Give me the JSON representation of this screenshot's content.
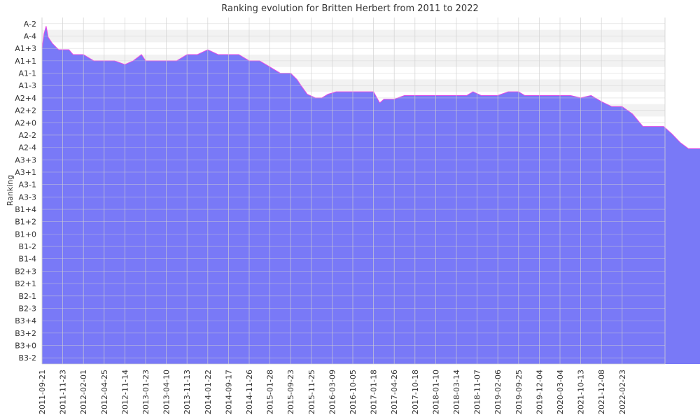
{
  "chart_data": {
    "type": "area",
    "title": "Ranking evolution for Britten Herbert from 2011 to 2022",
    "xlabel": "",
    "ylabel": "Ranking",
    "y_ticks": [
      "A-2",
      "A-4",
      "A1+3",
      "A1+1",
      "A1-1",
      "A1-3",
      "A2+4",
      "A2+2",
      "A2+0",
      "A2-2",
      "A2-4",
      "A3+3",
      "A3+1",
      "A3-1",
      "A3-3",
      "B1+4",
      "B1+2",
      "B1+0",
      "B1-2",
      "B1-4",
      "B2+3",
      "B2+1",
      "B2-1",
      "B2-3",
      "B3+4",
      "B3+2",
      "B3+0",
      "B3-2"
    ],
    "x_ticks": [
      "2011-09-21",
      "2011-11-23",
      "2012-02-01",
      "2012-04-25",
      "2012-11-14",
      "2013-01-23",
      "2013-04-10",
      "2013-11-13",
      "2014-01-22",
      "2014-09-17",
      "2014-11-26",
      "2015-01-28",
      "2015-09-23",
      "2015-11-25",
      "2016-03-09",
      "2016-10-05",
      "2017-01-18",
      "2017-04-26",
      "2017-10-18",
      "2018-01-10",
      "2018-03-14",
      "2018-11-07",
      "2019-02-06",
      "2019-09-25",
      "2019-12-04",
      "2020-03-04",
      "2021-10-13",
      "2021-12-08",
      "2022-02-23"
    ],
    "grid": true,
    "colors": {
      "fill": "#7272f7",
      "line": "#e64ce6",
      "band": "#f2f2f2",
      "grid": "#d0d0d0"
    },
    "series": [
      {
        "values": [
          [
            0.0,
            2.5
          ],
          [
            0.1,
            1.3
          ],
          [
            0.2,
            0.7
          ],
          [
            0.3,
            1.6
          ],
          [
            0.5,
            2.1
          ],
          [
            0.8,
            2.6
          ],
          [
            1.3,
            2.6
          ],
          [
            1.5,
            3.0
          ],
          [
            2.0,
            3.0
          ],
          [
            2.5,
            3.5
          ],
          [
            3.5,
            3.5
          ],
          [
            4.0,
            3.8
          ],
          [
            4.4,
            3.5
          ],
          [
            4.8,
            3.0
          ],
          [
            5.0,
            3.5
          ],
          [
            6.0,
            3.5
          ],
          [
            6.5,
            3.5
          ],
          [
            7.0,
            3.0
          ],
          [
            7.5,
            3.0
          ],
          [
            8.0,
            2.6
          ],
          [
            8.5,
            3.0
          ],
          [
            9.0,
            3.0
          ],
          [
            9.5,
            3.0
          ],
          [
            10.0,
            3.5
          ],
          [
            10.5,
            3.5
          ],
          [
            11.0,
            4.0
          ],
          [
            11.5,
            4.5
          ],
          [
            12.0,
            4.5
          ],
          [
            12.3,
            5.0
          ],
          [
            12.5,
            5.5
          ],
          [
            12.8,
            6.2
          ],
          [
            13.2,
            6.5
          ],
          [
            13.5,
            6.5
          ],
          [
            13.8,
            6.2
          ],
          [
            14.2,
            6.0
          ],
          [
            15.0,
            6.0
          ],
          [
            15.5,
            6.0
          ],
          [
            16.0,
            6.0
          ],
          [
            16.3,
            6.9
          ],
          [
            16.5,
            6.6
          ],
          [
            17.0,
            6.6
          ],
          [
            17.5,
            6.3
          ],
          [
            18.0,
            6.3
          ],
          [
            19.0,
            6.3
          ],
          [
            20.0,
            6.3
          ],
          [
            20.5,
            6.3
          ],
          [
            20.8,
            6.0
          ],
          [
            21.2,
            6.3
          ],
          [
            22.0,
            6.3
          ],
          [
            22.5,
            6.0
          ],
          [
            23.0,
            6.0
          ],
          [
            23.3,
            6.3
          ],
          [
            24.0,
            6.3
          ],
          [
            25.0,
            6.3
          ],
          [
            25.5,
            6.3
          ],
          [
            26.0,
            6.5
          ],
          [
            26.5,
            6.3
          ],
          [
            27.0,
            6.8
          ],
          [
            27.5,
            7.2
          ],
          [
            28.0,
            7.2
          ],
          [
            28.5,
            7.8
          ],
          [
            29.0,
            8.8
          ],
          [
            29.5,
            8.8
          ],
          [
            30.0,
            8.8
          ],
          [
            30.4,
            9.4
          ],
          [
            30.8,
            10.1
          ],
          [
            31.2,
            10.6
          ],
          [
            31.6,
            10.6
          ],
          [
            32.0,
            10.6
          ],
          [
            32.5,
            10.6
          ],
          [
            33.0,
            10.2
          ],
          [
            33.5,
            10.2
          ],
          [
            34.0,
            9.9
          ],
          [
            34.5,
            10.2
          ],
          [
            35.0,
            10.6
          ],
          [
            35.8,
            10.6
          ],
          [
            36.5,
            11.3
          ],
          [
            37.0,
            11.6
          ],
          [
            37.5,
            12.3
          ],
          [
            38.0,
            12.8
          ],
          [
            38.5,
            13.5
          ],
          [
            38.8,
            13.8
          ],
          [
            39.0,
            13.5
          ],
          [
            39.3,
            13.3
          ],
          [
            40.0,
            13.3
          ],
          [
            40.4,
            13.5
          ],
          [
            40.8,
            14.4
          ],
          [
            41.2,
            13.7
          ],
          [
            41.6,
            13.7
          ],
          [
            42.0,
            14.0
          ],
          [
            42.5,
            14.4
          ],
          [
            43.0,
            14.1
          ],
          [
            43.5,
            14.4
          ],
          [
            44.0,
            14.9
          ],
          [
            44.5,
            14.9
          ],
          [
            45.0,
            14.9
          ],
          [
            45.5,
            14.4
          ],
          [
            46.0,
            14.4
          ],
          [
            46.5,
            14.0
          ],
          [
            47.0,
            14.4
          ],
          [
            47.5,
            14.4
          ],
          [
            48.0,
            14.0
          ],
          [
            48.5,
            13.8
          ],
          [
            48.9,
            13.4
          ],
          [
            49.2,
            12.7
          ],
          [
            49.6,
            12.7
          ],
          [
            50.5,
            12.7
          ],
          [
            51.5,
            12.7
          ],
          [
            52.0,
            12.9
          ],
          [
            52.5,
            13.1
          ],
          [
            53.0,
            13.1
          ],
          [
            54.0,
            13.1
          ],
          [
            54.5,
            13.1
          ],
          [
            55.0,
            14.1
          ],
          [
            55.5,
            14.1
          ],
          [
            56.0,
            13.9
          ],
          [
            56.5,
            13.6
          ],
          [
            57.0,
            13.6
          ],
          [
            57.5,
            13.6
          ],
          [
            58.0,
            14.6
          ],
          [
            59.0,
            14.6
          ],
          [
            60.0,
            14.6
          ],
          [
            60.5,
            14.6
          ],
          [
            60.9,
            15.0
          ],
          [
            61.4,
            15.4
          ],
          [
            61.8,
            15.4
          ],
          [
            62.3,
            15.1
          ],
          [
            62.8,
            14.9
          ],
          [
            63.2,
            15.1
          ],
          [
            63.6,
            15.4
          ],
          [
            64.0,
            15.8
          ],
          [
            64.5,
            16.3
          ],
          [
            65.0,
            16.8
          ],
          [
            65.5,
            16.8
          ],
          [
            65.9,
            17.2
          ],
          [
            66.4,
            17.7
          ],
          [
            66.8,
            18.1
          ],
          [
            67.2,
            18.5
          ],
          [
            67.6,
            18.5
          ],
          [
            68.0,
            18.5
          ],
          [
            68.5,
            18.5
          ],
          [
            69.0,
            18.5
          ],
          [
            69.5,
            18.5
          ],
          [
            70.0,
            18.5
          ],
          [
            70.5,
            18.5
          ],
          [
            71.0,
            18.5
          ],
          [
            71.5,
            18.5
          ],
          [
            72.0,
            18.5
          ],
          [
            72.4,
            18.3
          ],
          [
            72.8,
            18.5
          ],
          [
            73.2,
            18.7
          ],
          [
            73.6,
            18.7
          ],
          [
            74.0,
            18.9
          ],
          [
            74.5,
            19.4
          ],
          [
            75.0,
            19.8
          ],
          [
            75.5,
            19.8
          ],
          [
            76.0,
            19.8
          ],
          [
            76.5,
            19.8
          ],
          [
            77.0,
            19.8
          ],
          [
            77.5,
            19.8
          ],
          [
            78.0,
            19.8
          ],
          [
            78.5,
            19.6
          ],
          [
            79.0,
            19.4
          ],
          [
            79.5,
            19.1
          ],
          [
            80.0,
            19.1
          ],
          [
            80.5,
            19.1
          ],
          [
            81.0,
            19.1
          ],
          [
            81.5,
            19.4
          ],
          [
            82.0,
            19.4
          ],
          [
            82.4,
            19.8
          ],
          [
            82.7,
            20.5
          ],
          [
            83.0,
            21.3
          ],
          [
            83.3,
            21.3
          ],
          [
            83.6,
            22.0
          ],
          [
            84.0,
            22.6
          ],
          [
            84.5,
            22.6
          ],
          [
            85.0,
            22.6
          ],
          [
            85.5,
            22.6
          ],
          [
            86.0,
            22.6
          ],
          [
            86.5,
            22.6
          ],
          [
            87.0,
            22.6
          ],
          [
            87.5,
            22.6
          ],
          [
            88.0,
            22.9
          ],
          [
            88.5,
            22.6
          ],
          [
            89.0,
            22.6
          ],
          [
            89.5,
            22.9
          ],
          [
            90.0,
            23.2
          ],
          [
            90.5,
            23.2
          ],
          [
            91.0,
            23.2
          ],
          [
            91.5,
            23.2
          ],
          [
            92.0,
            23.2
          ],
          [
            92.5,
            23.7
          ],
          [
            93.0,
            24.0
          ],
          [
            93.5,
            24.0
          ],
          [
            94.0,
            23.7
          ]
        ]
      }
    ]
  }
}
